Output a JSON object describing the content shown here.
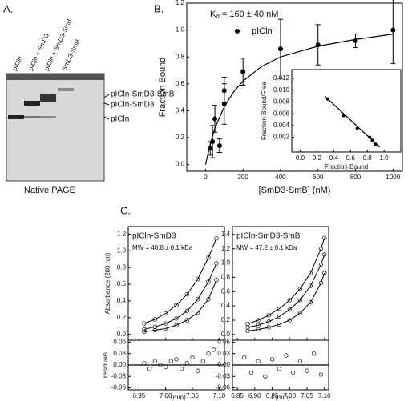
{
  "panels": [
    "A.",
    "B.",
    "C."
  ],
  "gel": {
    "lanes": [
      "pICln",
      "pICln + SmD3",
      "pICln + SmD3-SmB",
      "SmD3-SmB"
    ],
    "bands": [
      "pICln-SmD3-SmB",
      "pICln-SmD3",
      "pICln"
    ],
    "caption": "Native PAGE"
  },
  "chart_data": [
    {
      "type": "scatter",
      "xlabel": "[SmD3-SmB] (nM)",
      "ylabel": "Fraction Bound",
      "annotation": {
        "base": "K",
        "sub": "d",
        "rest": " = 160 ± 40 nM"
      },
      "xlim": [
        -100,
        1050
      ],
      "ylim": [
        -0.05,
        1.2
      ],
      "xticks": [
        0,
        200,
        400,
        600,
        800,
        1000
      ],
      "yticks": [
        {
          "value": 0,
          "label": "0.0"
        },
        {
          "value": 0.2,
          "label": "0.2"
        },
        {
          "value": 0.4,
          "label": "0.4"
        },
        {
          "value": 0.6,
          "label": "0.6"
        },
        {
          "value": 0.8,
          "label": "0.8"
        },
        {
          "value": 1,
          "label": "1.0"
        },
        {
          "value": 1.2,
          "label": "1.2"
        }
      ],
      "series": [
        {
          "name": "pICln",
          "color": "#000000",
          "x": [
            25,
            37.5,
            50,
            75,
            100,
            100,
            200,
            400,
            600,
            800,
            1000
          ],
          "values": [
            0.12,
            0.17,
            0.34,
            0.14,
            0.45,
            0.55,
            0.69,
            0.86,
            0.89,
            0.92,
            1.0
          ],
          "errors": [
            0.05,
            0.12,
            0.1,
            0.05,
            0.15,
            0.1,
            0.1,
            0.22,
            0.15,
            0.05,
            0.25
          ]
        }
      ],
      "fit": {
        "x": [
          0,
          25,
          50,
          100,
          150,
          200,
          300,
          400,
          600,
          800,
          1000
        ],
        "values": [
          0,
          0.15,
          0.27,
          0.43,
          0.54,
          0.62,
          0.73,
          0.8,
          0.88,
          0.93,
          0.97
        ]
      }
    },
    {
      "type": "scatter",
      "xlabel": "Fraction Bound",
      "ylabel": "Fraction Bound/Free",
      "xlim": [
        -0.1,
        1.2
      ],
      "ylim": [
        -0.0005,
        0.0135
      ],
      "xticks": [
        {
          "value": 0,
          "label": "0.0"
        },
        {
          "value": 0.2,
          "label": "0.2"
        },
        {
          "value": 0.4,
          "label": "0.4"
        },
        {
          "value": 0.6,
          "label": "0.6"
        },
        {
          "value": 0.8,
          "label": "0.8"
        },
        {
          "value": 1,
          "label": "1.0"
        }
      ],
      "yticks": [
        0.002,
        0.004,
        0.006,
        0.008,
        {
          "value": 0.01,
          "label": "0.010"
        },
        {
          "value": 0.012,
          "label": "0.012"
        }
      ],
      "series": [
        {
          "color": "#000000",
          "x": [
            0.33,
            0.52,
            0.68,
            0.83,
            0.86,
            0.9
          ],
          "values": [
            0.0085,
            0.0057,
            0.0035,
            0.002,
            0.0015,
            0.0008
          ]
        }
      ],
      "fit": {
        "x": [
          0.3,
          0.95
        ],
        "values": [
          0.0089,
          0.0003
        ]
      }
    },
    {
      "type": "scatter",
      "title": "pICln-SmD3",
      "subtitle": "MW = 40.8 ± 0.1 kDa",
      "xlabel": "r (mm)",
      "ylabel": "Absorbance (280 nm)",
      "xlim": [
        6.93,
        7.11
      ],
      "ylim": [
        -0.07,
        1.29
      ],
      "xticks": [
        6.95,
        {
          "value": 7,
          "label": "7.00"
        },
        {
          "value": 7.05,
          "label": "7.05"
        },
        {
          "value": 7.1,
          "label": "7.10"
        }
      ],
      "yticks": [
        {
          "value": 0,
          "label": "0.0"
        },
        {
          "value": 0.2,
          "label": "0.2"
        },
        {
          "value": 0.4,
          "label": "0.4"
        },
        {
          "value": 0.6,
          "label": "0.6"
        },
        {
          "value": 0.8,
          "label": "0.8"
        },
        {
          "value": 1,
          "label": "1.0"
        },
        {
          "value": 1.2,
          "label": "1.2"
        }
      ],
      "x": [
        6.96,
        6.98,
        7.0,
        7.02,
        7.04,
        7.06,
        7.08,
        7.095
      ],
      "series": [
        {
          "values": [
            0.13,
            0.18,
            0.25,
            0.35,
            0.48,
            0.66,
            0.92,
            1.15
          ]
        },
        {
          "values": [
            0.06,
            0.09,
            0.13,
            0.19,
            0.28,
            0.42,
            0.63,
            0.85
          ]
        },
        {
          "values": [
            0.03,
            0.05,
            0.07,
            0.11,
            0.17,
            0.26,
            0.42,
            0.65
          ]
        }
      ],
      "residuals": {
        "ylabel": "residuals",
        "ylim": [
          -0.065,
          0.065
        ],
        "yticks": [
          -0.06,
          -0.03,
          {
            "value": 0,
            "label": "0.00"
          },
          0.03,
          0.06
        ],
        "x": [
          6.96,
          6.97,
          6.98,
          6.99,
          7.0,
          7.01,
          7.02,
          7.03,
          7.04,
          7.05,
          7.06,
          7.07,
          7.08,
          7.09
        ],
        "values": [
          0.005,
          -0.01,
          0.01,
          0.0,
          -0.005,
          0.01,
          0.015,
          -0.01,
          0.005,
          0.02,
          -0.015,
          0.01,
          0.03,
          0.04
        ]
      }
    },
    {
      "type": "scatter",
      "title": "pICln-SmD3-SmB",
      "subtitle": "MW = 47.2 ± 0.1 kDa",
      "xlabel": "r (mm)",
      "xlim": [
        6.836,
        7.112
      ],
      "ylim": [
        -0.08,
        1.51
      ],
      "xticks": [
        6.85,
        {
          "value": 6.9,
          "label": "6.90"
        },
        6.95,
        {
          "value": 7,
          "label": "7.00"
        },
        7.05,
        {
          "value": 7.1,
          "label": "7.10"
        }
      ],
      "yticks": [
        {
          "value": 0,
          "label": "0.0"
        },
        {
          "value": 0.2,
          "label": "0.2"
        },
        {
          "value": 0.4,
          "label": "0.4"
        },
        {
          "value": 0.6,
          "label": "0.6"
        },
        {
          "value": 0.8,
          "label": "0.8"
        },
        {
          "value": 1,
          "label": "1.0"
        },
        {
          "value": 1.2,
          "label": "1.2"
        },
        {
          "value": 1.4,
          "label": "1.4"
        }
      ],
      "x": [
        6.88,
        6.91,
        6.94,
        6.97,
        7.0,
        7.03,
        7.06,
        7.09,
        7.1
      ],
      "series": [
        {
          "values": [
            0.15,
            0.2,
            0.27,
            0.36,
            0.48,
            0.64,
            0.86,
            1.2,
            1.35
          ]
        },
        {
          "values": [
            0.1,
            0.13,
            0.18,
            0.25,
            0.35,
            0.48,
            0.68,
            0.98,
            1.12
          ]
        },
        {
          "values": [
            0.05,
            0.07,
            0.1,
            0.14,
            0.2,
            0.3,
            0.45,
            0.72,
            0.86
          ]
        }
      ],
      "residuals": {
        "ylim": [
          -0.065,
          0.065
        ],
        "yticks": [
          -0.06,
          -0.03,
          {
            "value": 0,
            "label": "0.00"
          },
          0.03,
          0.06
        ],
        "x": [
          6.87,
          6.89,
          6.91,
          6.93,
          6.95,
          6.97,
          6.99,
          7.01,
          7.03,
          7.05,
          7.07,
          7.09
        ],
        "values": [
          0.02,
          -0.02,
          0.01,
          -0.03,
          0.015,
          -0.01,
          0.025,
          -0.02,
          0.01,
          -0.015,
          0.03,
          -0.025
        ]
      }
    }
  ]
}
